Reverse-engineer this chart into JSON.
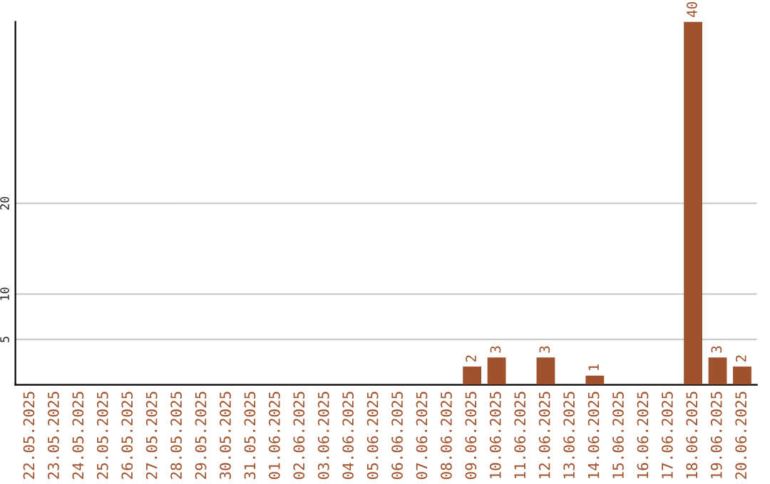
{
  "chart_data": {
    "type": "bar",
    "categories": [
      "22.05.2025",
      "23.05.2025",
      "24.05.2025",
      "25.05.2025",
      "26.05.2025",
      "27.05.2025",
      "28.05.2025",
      "29.05.2025",
      "30.05.2025",
      "31.05.2025",
      "01.06.2025",
      "02.06.2025",
      "03.06.2025",
      "04.06.2025",
      "05.06.2025",
      "06.06.2025",
      "07.06.2025",
      "08.06.2025",
      "09.06.2025",
      "10.06.2025",
      "11.06.2025",
      "12.06.2025",
      "13.06.2025",
      "14.06.2025",
      "15.06.2025",
      "16.06.2025",
      "17.06.2025",
      "18.06.2025",
      "19.06.2025",
      "20.06.2025"
    ],
    "values": [
      0,
      0,
      0,
      0,
      0,
      0,
      0,
      0,
      0,
      0,
      0,
      0,
      0,
      0,
      0,
      0,
      0,
      0,
      2,
      3,
      0,
      3,
      0,
      1,
      0,
      0,
      0,
      40,
      3,
      2
    ],
    "value_labels": [
      null,
      null,
      null,
      null,
      null,
      null,
      null,
      null,
      null,
      null,
      null,
      null,
      null,
      null,
      null,
      null,
      null,
      null,
      "2",
      "3",
      null,
      "3",
      null,
      "1",
      null,
      null,
      null,
      "40",
      "3",
      "2"
    ],
    "color": "#a0522d",
    "ylim": [
      0,
      40
    ],
    "yticks": [
      5,
      10,
      20
    ],
    "grid": "y"
  }
}
